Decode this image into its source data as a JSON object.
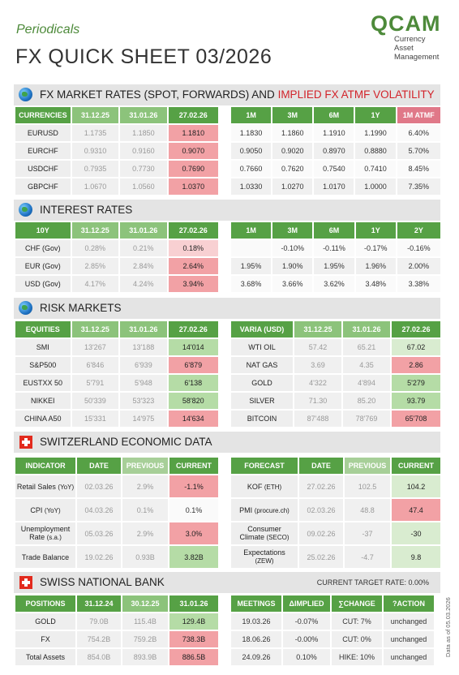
{
  "header": {
    "periodicals": "Periodicals",
    "title": "FX QUICK SHEET 03/2026",
    "logo_word": "QCAM",
    "logo_sub": [
      "Currency",
      "Asset",
      "Management"
    ]
  },
  "fx": {
    "section_title": "FX MARKET RATES (SPOT, FORWARDS) AND",
    "section_title_red": "IMPLIED FX ATMF VOLATILITY",
    "left_headers": [
      "CURRENCIES",
      "31.12.25",
      "31.01.26",
      "27.02.26"
    ],
    "right_headers": [
      "1M",
      "3M",
      "6M",
      "1Y",
      "1M ATMF"
    ],
    "rows": [
      {
        "name": "EURUSD",
        "v1": "1.1735",
        "v2": "1.1850",
        "cur": "1.1810",
        "f1m": "1.1830",
        "f3m": "1.1860",
        "f6m": "1.1910",
        "f1y": "1.1990",
        "vol": "6.40%"
      },
      {
        "name": "EURCHF",
        "v1": "0.9310",
        "v2": "0.9160",
        "cur": "0.9070",
        "f1m": "0.9050",
        "f3m": "0.9020",
        "f6m": "0.8970",
        "f1y": "0.8880",
        "vol": "5.70%"
      },
      {
        "name": "USDCHF",
        "v1": "0.7935",
        "v2": "0.7730",
        "cur": "0.7690",
        "f1m": "0.7660",
        "f3m": "0.7620",
        "f6m": "0.7540",
        "f1y": "0.7410",
        "vol": "8.45%"
      },
      {
        "name": "GBPCHF",
        "v1": "1.0670",
        "v2": "1.0560",
        "cur": "1.0370",
        "f1m": "1.0330",
        "f3m": "1.0270",
        "f6m": "1.0170",
        "f1y": "1.0000",
        "vol": "7.35%"
      }
    ]
  },
  "rates": {
    "section_title": "INTEREST RATES",
    "left_headers": [
      "10Y",
      "31.12.25",
      "31.01.26",
      "27.02.26"
    ],
    "right_headers": [
      "1M",
      "3M",
      "6M",
      "1Y",
      "2Y"
    ],
    "rows": [
      {
        "name": "CHF (Gov)",
        "v1": "0.28%",
        "v2": "0.21%",
        "cur": "0.18%",
        "r1m": "",
        "r3m": "-0.10%",
        "r6m": "-0.11%",
        "r1y": "-0.17%",
        "r2y": "-0.16%"
      },
      {
        "name": "EUR (Gov)",
        "v1": "2.85%",
        "v2": "2.84%",
        "cur": "2.64%",
        "r1m": "1.95%",
        "r3m": "1.90%",
        "r6m": "1.95%",
        "r1y": "1.96%",
        "r2y": "2.00%"
      },
      {
        "name": "USD (Gov)",
        "v1": "4.17%",
        "v2": "4.24%",
        "cur": "3.94%",
        "r1m": "3.68%",
        "r3m": "3.66%",
        "r6m": "3.62%",
        "r1y": "3.48%",
        "r2y": "3.38%"
      }
    ]
  },
  "risk": {
    "section_title": "RISK MARKETS",
    "eq_headers": [
      "EQUITIES",
      "31.12.25",
      "31.01.26",
      "27.02.26"
    ],
    "varia_headers": [
      "VARIA (USD)",
      "31.12.25",
      "31.01.26",
      "27.02.26"
    ],
    "equities": [
      {
        "name": "SMI",
        "v1": "13'267",
        "v2": "13'188",
        "cur": "14'014"
      },
      {
        "name": "S&P500",
        "v1": "6'846",
        "v2": "6'939",
        "cur": "6'879"
      },
      {
        "name": "EUSTXX 50",
        "v1": "5'791",
        "v2": "5'948",
        "cur": "6'138"
      },
      {
        "name": "NIKKEI",
        "v1": "50'339",
        "v2": "53'323",
        "cur": "58'820"
      },
      {
        "name": "CHINA A50",
        "v1": "15'331",
        "v2": "14'975",
        "cur": "14'634"
      }
    ],
    "varia": [
      {
        "name": "WTI OIL",
        "v1": "57.42",
        "v2": "65.21",
        "cur": "67.02"
      },
      {
        "name": "NAT GAS",
        "v1": "3.69",
        "v2": "4.35",
        "cur": "2.86"
      },
      {
        "name": "GOLD",
        "v1": "4'322",
        "v2": "4'894",
        "cur": "5'279"
      },
      {
        "name": "SILVER",
        "v1": "71.30",
        "v2": "85.20",
        "cur": "93.79"
      },
      {
        "name": "BITCOIN",
        "v1": "87'488",
        "v2": "78'769",
        "cur": "65'708"
      }
    ]
  },
  "swiss_econ": {
    "section_title": "SWITZERLAND ECONOMIC DATA",
    "ind_headers": [
      "INDICATOR",
      "DATE",
      "PREVIOUS",
      "CURRENT"
    ],
    "fc_headers": [
      "FORECAST",
      "DATE",
      "PREVIOUS",
      "CURRENT"
    ],
    "indicators": [
      {
        "name": "Retail Sales",
        "suffix": "(YoY)",
        "date": "02.03.26",
        "prev": "2.9%",
        "cur": "-1.1%"
      },
      {
        "name": "CPI",
        "suffix": "(YoY)",
        "date": "04.03.26",
        "prev": "0.1%",
        "cur": "0.1%"
      },
      {
        "name": "Unemployment",
        "name2": "Rate",
        "suffix": "(s.a.)",
        "date": "05.03.26",
        "prev": "2.9%",
        "cur": "3.0%"
      },
      {
        "name": "Trade Balance",
        "suffix": "",
        "date": "19.02.26",
        "prev": "0.93B",
        "cur": "3.82B"
      }
    ],
    "forecasts": [
      {
        "name": "KOF",
        "suffix": "(ETH)",
        "date": "27.02.26",
        "prev": "102.5",
        "cur": "104.2"
      },
      {
        "name": "PMI",
        "suffix": "(procure.ch)",
        "date": "02.03.26",
        "prev": "48.8",
        "cur": "47.4"
      },
      {
        "name": "Consumer",
        "name2": "Climate",
        "suffix": "(SECO)",
        "date": "09.02.26",
        "prev": "-37",
        "cur": "-30"
      },
      {
        "name": "Expectations",
        "suffix": "(ZEW)",
        "date": "25.02.26",
        "prev": "-4.7",
        "cur": "9.8"
      }
    ]
  },
  "snb": {
    "section_title": "SWISS NATIONAL BANK",
    "target_rate": "CURRENT TARGET RATE: 0.00%",
    "pos_headers": [
      "POSITIONS",
      "31.12.24",
      "30.12.25",
      "31.01.26"
    ],
    "mtg_headers": [
      "MEETINGS",
      "ΔIMPLIED",
      "∑CHANGE",
      "?ACTION"
    ],
    "positions": [
      {
        "name": "GOLD",
        "v1": "79.0B",
        "v2": "115.4B",
        "cur": "129.4B"
      },
      {
        "name": "FX",
        "v1": "754.2B",
        "v2": "759.2B",
        "cur": "738.3B"
      },
      {
        "name": "Total Assets",
        "v1": "854.0B",
        "v2": "893.9B",
        "cur": "886.5B"
      }
    ],
    "meetings": [
      {
        "date": "19.03.26",
        "implied": "-0.07%",
        "change": "CUT: 7%",
        "action": "unchanged"
      },
      {
        "date": "18.06.26",
        "implied": "-0.00%",
        "change": "CUT: 0%",
        "action": "unchanged"
      },
      {
        "date": "24.09.26",
        "implied": "0.10%",
        "change": "HIKE: 10%",
        "action": "unchanged"
      }
    ]
  },
  "footer": {
    "data_as_of": "Data as of 05.03.2026"
  },
  "colors": {
    "green_header": "#56a145",
    "red_cell": "#f2a1a5",
    "green_cell": "#b5dca6",
    "accent_red": "#d2232a"
  }
}
